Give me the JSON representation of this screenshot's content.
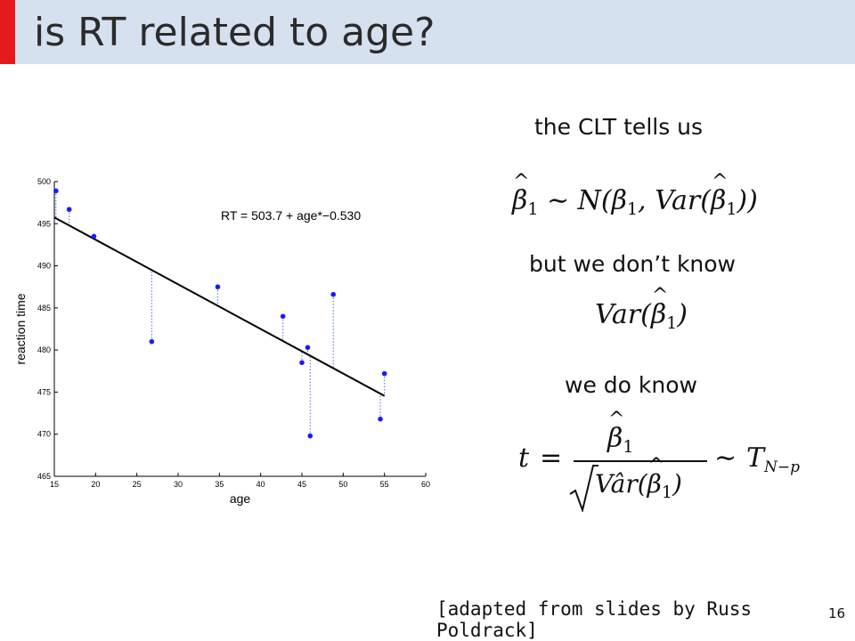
{
  "slide": {
    "title": "is RT related to age?",
    "accent_color": "#e31b1b",
    "title_bar_color": "#d5e1ee",
    "page_number": "16",
    "citation": "[adapted from slides by Russ Poldrack]"
  },
  "text": {
    "clt": "the CLT tells us",
    "dont_know": "but we don’t know",
    "do_know": "we do know"
  },
  "math": {
    "beta1": "β",
    "sub1": "1",
    "eq1_mid": " ∼ N(β",
    "eq1_var": ", Var(",
    "eq1_close": "))",
    "var": "Var(",
    "close": ")",
    "t": "t",
    "equals": "=",
    "var_hat": "Vâr(",
    "tilde": "∼",
    "T": "T",
    "tsub": "N−p"
  },
  "chart_data": {
    "type": "scatter",
    "xlabel": "age",
    "ylabel": "reaction time",
    "xlim": [
      15,
      60
    ],
    "ylim": [
      465,
      500
    ],
    "xticks": [
      15,
      20,
      25,
      30,
      35,
      40,
      45,
      50,
      55,
      60
    ],
    "yticks": [
      465,
      470,
      475,
      480,
      485,
      490,
      495,
      500
    ],
    "annotation": "RT = 503.7 + age*−0.530",
    "fit": {
      "intercept": 503.7,
      "slope": -0.53,
      "x_range": [
        15,
        55
      ]
    },
    "point_color": "#1a1aff",
    "residual_color": "#4a6bd8",
    "points": [
      {
        "x": 15.2,
        "y": 498.9
      },
      {
        "x": 16.8,
        "y": 496.7
      },
      {
        "x": 19.8,
        "y": 493.5
      },
      {
        "x": 26.8,
        "y": 481.0
      },
      {
        "x": 34.8,
        "y": 487.5
      },
      {
        "x": 42.7,
        "y": 484.0
      },
      {
        "x": 45.0,
        "y": 478.5
      },
      {
        "x": 45.7,
        "y": 480.3
      },
      {
        "x": 46.0,
        "y": 469.8
      },
      {
        "x": 48.8,
        "y": 486.6
      },
      {
        "x": 54.5,
        "y": 471.8
      },
      {
        "x": 55.0,
        "y": 477.2
      }
    ]
  }
}
